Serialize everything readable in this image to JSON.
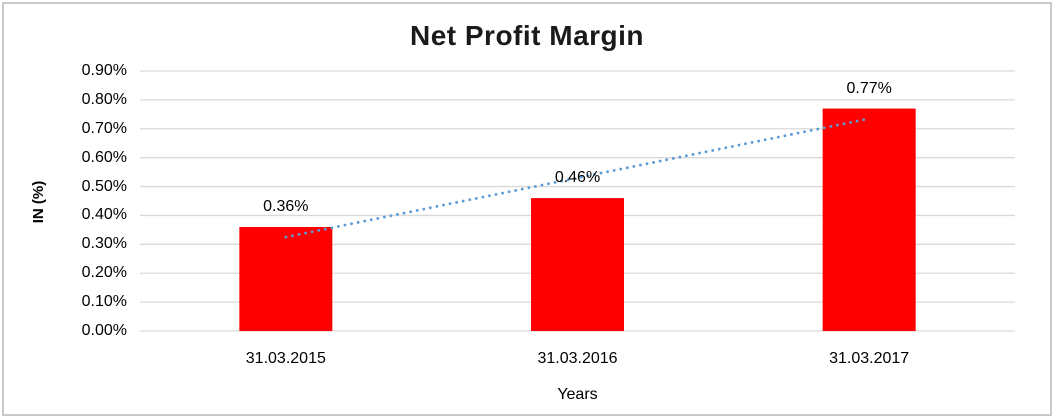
{
  "chart_data": {
    "type": "bar",
    "title": "Net Profit Margin",
    "xlabel": "Years",
    "ylabel": "IN (%)",
    "categories": [
      "31.03.2015",
      "31.03.2016",
      "31.03.2017"
    ],
    "values": [
      0.36,
      0.46,
      0.77
    ],
    "data_labels": [
      "0.36%",
      "0.46%",
      "0.77%"
    ],
    "y_ticks": [
      {
        "value": 0.0,
        "label": "0.00%"
      },
      {
        "value": 0.1,
        "label": "0.10%"
      },
      {
        "value": 0.2,
        "label": "0.20%"
      },
      {
        "value": 0.3,
        "label": "0.30%"
      },
      {
        "value": 0.4,
        "label": "0.40%"
      },
      {
        "value": 0.5,
        "label": "0.50%"
      },
      {
        "value": 0.6,
        "label": "0.60%"
      },
      {
        "value": 0.7,
        "label": "0.70%"
      },
      {
        "value": 0.8,
        "label": "0.80%"
      },
      {
        "value": 0.9,
        "label": "0.90%"
      }
    ],
    "ylim": [
      0,
      0.9
    ],
    "grid": true,
    "legend": "none",
    "trendline": {
      "type": "linear",
      "style": "dotted"
    },
    "colors": {
      "bar": "#FF0000",
      "trendline": "#5B9BD5",
      "gridline": "#D9D9D9",
      "text": "#000000",
      "frame_border": "#C9C9C9",
      "background": "#FFFFFF"
    }
  }
}
